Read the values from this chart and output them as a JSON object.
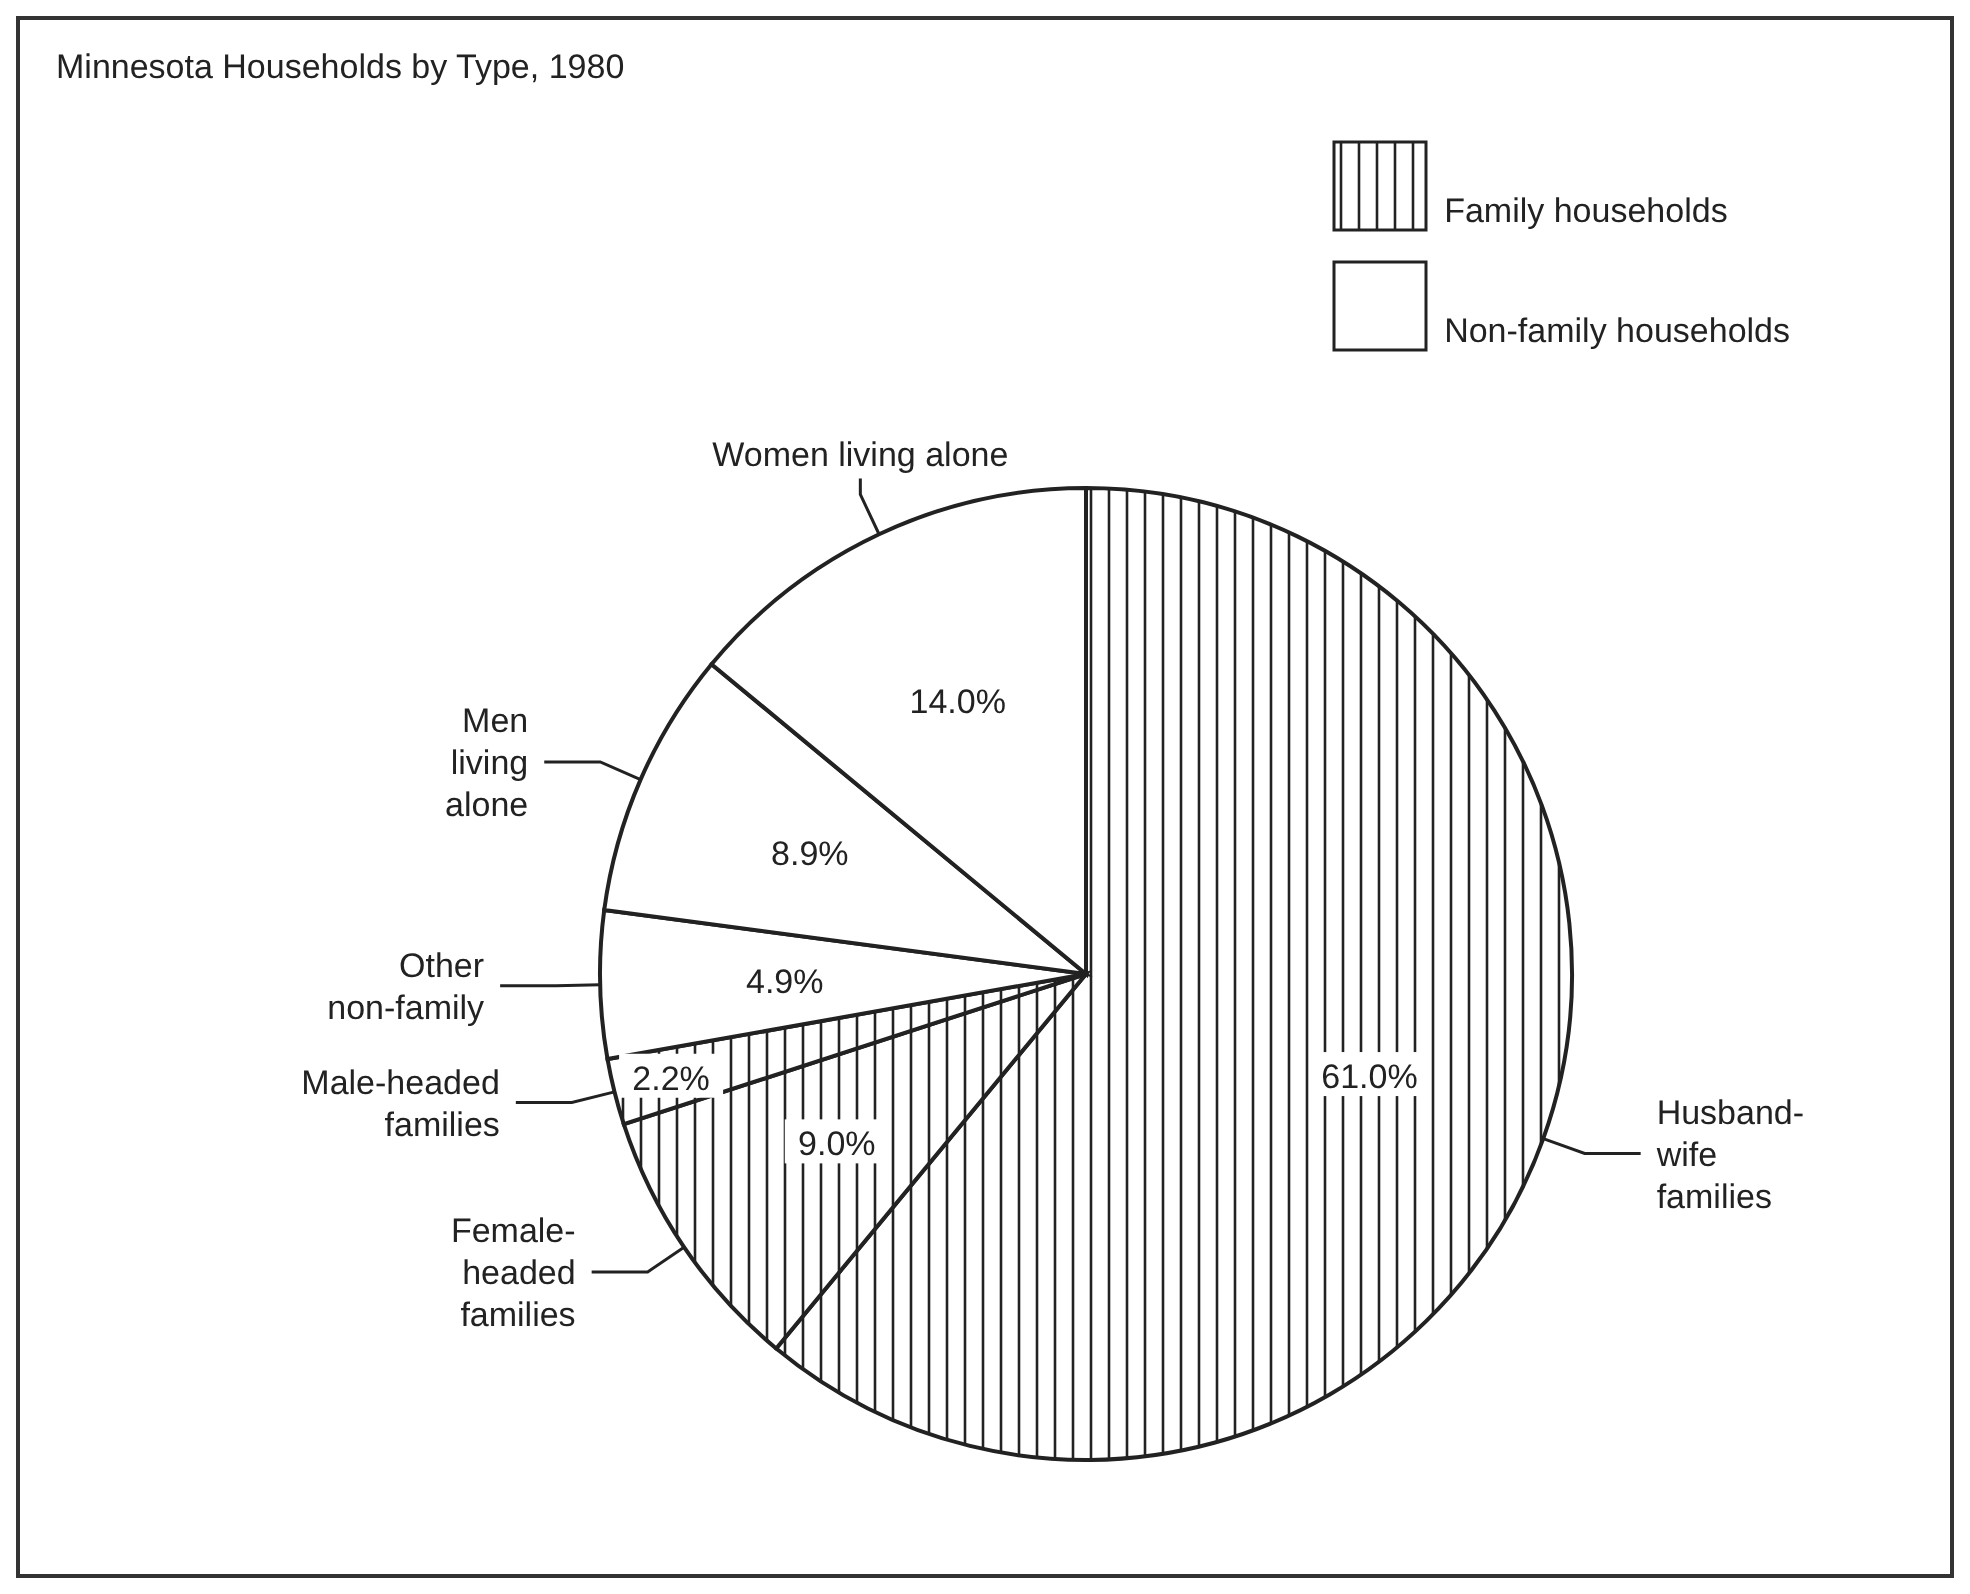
{
  "chart_data": {
    "type": "pie",
    "title": "Minnesota Households by Type, 1980",
    "categories": [
      "Husband-\nwife\nfamilies",
      "Female-\nheaded\nfamilies",
      "Male-headed\nfamilies",
      "Other\nnon-family",
      "Men\nliving\nalone",
      "Women living alone"
    ],
    "values": [
      61.0,
      9.0,
      2.2,
      4.9,
      8.9,
      14.0
    ],
    "value_labels": [
      "61.0%",
      "9.0%",
      "2.2%",
      "4.9%",
      "8.9%",
      "14.0%"
    ],
    "colors": [
      "#222222",
      "#222222",
      "#222222",
      "#ffffff",
      "#ffffff",
      "#ffffff"
    ],
    "annotations": [
      "Family households",
      "Non-family households"
    ]
  }
}
